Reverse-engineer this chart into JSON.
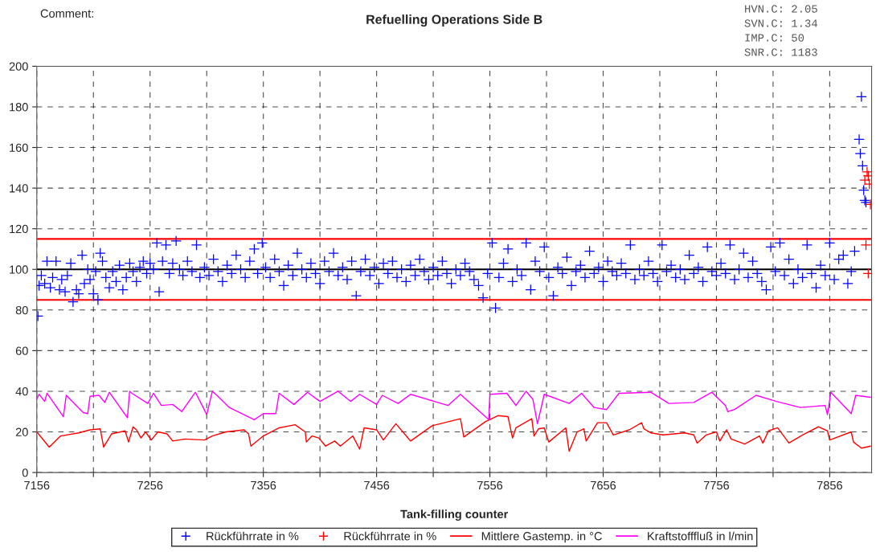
{
  "chart_data": {
    "type": "scatter",
    "title": "Refuelling Operations Side B",
    "xlabel": "Tank-filling counter",
    "annotations": [
      "Comment:",
      "HVN.C: 2.05",
      "SVN.C: 1.34",
      "IMP.C: 50",
      "SNR.C: 1183"
    ],
    "xlim": [
      7156,
      7893
    ],
    "ylim": [
      0,
      200
    ],
    "xticks": [
      7156,
      {
        "value": 7206,
        "label": null
      },
      7256,
      {
        "value": 7306,
        "label": null
      },
      7356,
      {
        "value": 7406,
        "label": null
      },
      7456,
      {
        "value": 7506,
        "label": null
      },
      7556,
      {
        "value": 7606,
        "label": null
      },
      7656,
      {
        "value": 7706,
        "label": null
      },
      7756,
      {
        "value": 7806,
        "label": null
      },
      7856
    ],
    "yticks": [
      0,
      20,
      40,
      60,
      80,
      100,
      120,
      140,
      160,
      180,
      200
    ],
    "grid": true,
    "legend": "bottom",
    "ref_lines": [
      {
        "axis": "y",
        "value": 115,
        "color": "#ff0000"
      },
      {
        "axis": "y",
        "value": 85,
        "color": "#ff0000"
      },
      {
        "axis": "y",
        "value": 100,
        "color": "#000000"
      }
    ],
    "series": [
      {
        "marker": "cross",
        "name": "Rückführrate in %",
        "color": "#0000ff",
        "x": [
          7157,
          7158,
          7160,
          7163,
          7165,
          7168,
          7170,
          7173,
          7176,
          7178,
          7181,
          7183,
          7186,
          7188,
          7191,
          7193,
          7196,
          7198,
          7201,
          7203,
          7206,
          7208,
          7210,
          7212,
          7214,
          7217,
          7220,
          7223,
          7226,
          7229,
          7232,
          7235,
          7238,
          7241,
          7244,
          7247,
          7250,
          7253,
          7256,
          7259,
          7262,
          7264,
          7267,
          7270,
          7273,
          7276,
          7279,
          7282,
          7285,
          7289,
          7293,
          7297,
          7300,
          7304,
          7308,
          7312,
          7316,
          7320,
          7324,
          7328,
          7332,
          7336,
          7340,
          7344,
          7348,
          7351,
          7355,
          7358,
          7362,
          7366,
          7370,
          7374,
          7378,
          7382,
          7386,
          7390,
          7394,
          7398,
          7402,
          7406,
          7410,
          7414,
          7418,
          7422,
          7426,
          7430,
          7434,
          7438,
          7442,
          7446,
          7450,
          7454,
          7458,
          7462,
          7466,
          7470,
          7474,
          7478,
          7482,
          7486,
          7490,
          7494,
          7498,
          7502,
          7506,
          7510,
          7514,
          7518,
          7522,
          7526,
          7530,
          7534,
          7538,
          7542,
          7546,
          7550,
          7554,
          7558,
          7561,
          7564,
          7568,
          7572,
          7576,
          7580,
          7584,
          7588,
          7592,
          7596,
          7600,
          7604,
          7608,
          7612,
          7616,
          7620,
          7624,
          7628,
          7632,
          7636,
          7640,
          7644,
          7648,
          7652,
          7656,
          7660,
          7664,
          7668,
          7672,
          7676,
          7680,
          7684,
          7688,
          7692,
          7696,
          7700,
          7704,
          7708,
          7712,
          7716,
          7720,
          7724,
          7728,
          7732,
          7736,
          7740,
          7744,
          7748,
          7752,
          7756,
          7760,
          7764,
          7768,
          7772,
          7776,
          7780,
          7784,
          7788,
          7792,
          7796,
          7800,
          7804,
          7808,
          7812,
          7816,
          7820,
          7824,
          7828,
          7832,
          7836,
          7840,
          7844,
          7848,
          7852,
          7856,
          7860,
          7864,
          7868,
          7872,
          7875,
          7878,
          7882,
          7883,
          7884,
          7885,
          7886,
          7887,
          7888
        ],
        "values": [
          77,
          92,
          97,
          93,
          104,
          91,
          96,
          104,
          90,
          95,
          89,
          97,
          103,
          84,
          90,
          88,
          107,
          93,
          100,
          95,
          88,
          99,
          85,
          108,
          104,
          96,
          91,
          99,
          94,
          102,
          90,
          96,
          103,
          99,
          94,
          101,
          104,
          98,
          103,
          100,
          113,
          89,
          104,
          112,
          98,
          103,
          114,
          100,
          97,
          104,
          99,
          112,
          96,
          101,
          97,
          105,
          99,
          94,
          102,
          98,
          107,
          100,
          96,
          104,
          110,
          98,
          113,
          101,
          96,
          105,
          99,
          92,
          102,
          97,
          108,
          100,
          96,
          103,
          98,
          93,
          104,
          99,
          108,
          97,
          101,
          95,
          104,
          87,
          99,
          105,
          97,
          101,
          93,
          103,
          98,
          104,
          96,
          100,
          94,
          102,
          97,
          105,
          99,
          95,
          101,
          97,
          104,
          98,
          93,
          100,
          97,
          103,
          99,
          95,
          92,
          86,
          98,
          113,
          81,
          96,
          103,
          110,
          94,
          100,
          97,
          113,
          90,
          104,
          99,
          111,
          96,
          87,
          101,
          98,
          106,
          92,
          99,
          102,
          96,
          109,
          98,
          101,
          94,
          104,
          99,
          97,
          103,
          98,
          112,
          95,
          100,
          97,
          104,
          98,
          94,
          112,
          99,
          102,
          96,
          100,
          95,
          107,
          98,
          101,
          94,
          111,
          99,
          97,
          103,
          98,
          112,
          95,
          100,
          108,
          96,
          104,
          98,
          94,
          90,
          111,
          99,
          113,
          97,
          105,
          93,
          100,
          96,
          112,
          98,
          91,
          102,
          97,
          113,
          95,
          105,
          107,
          93,
          99,
          109,
          164,
          157,
          185,
          151,
          139,
          134,
          133
        ]
      },
      {
        "marker": "cross",
        "name": "Rückführrate in %",
        "color": "#ff0000",
        "x": [
          7887,
          7888,
          7889,
          7890,
          7890,
          7891,
          7892
        ],
        "values": [
          144,
          112,
          148,
          146,
          98,
          142,
          132
        ]
      },
      {
        "type": "line",
        "marker": "none",
        "name": "Mittlere Gastemp. in °C",
        "color": "#ff0000",
        "x": [
          7156,
          7167,
          7177,
          7193,
          7203,
          7212,
          7215,
          7222,
          7234,
          7237,
          7241,
          7244,
          7248,
          7252,
          7257,
          7263,
          7271,
          7276,
          7287,
          7304,
          7311,
          7323,
          7339,
          7343,
          7345,
          7356,
          7370,
          7384,
          7393,
          7394,
          7399,
          7405,
          7411,
          7419,
          7424,
          7435,
          7441,
          7445,
          7456,
          7462,
          7473,
          7486,
          7505,
          7530,
          7533,
          7552,
          7563,
          7572,
          7576,
          7579,
          7593,
          7595,
          7599,
          7604,
          7608,
          7623,
          7626,
          7633,
          7639,
          7641,
          7651,
          7659,
          7665,
          7679,
          7690,
          7692,
          7698,
          7709,
          7728,
          7736,
          7739,
          7747,
          7756,
          7759,
          7765,
          7769,
          7781,
          7794,
          7797,
          7802,
          7810,
          7820,
          7832,
          7846,
          7854,
          7856,
          7875,
          7877,
          7884,
          7892
        ],
        "values": [
          20,
          12.5,
          18,
          19.5,
          21,
          21.5,
          12.5,
          19,
          20.5,
          15,
          22.5,
          21,
          17,
          20,
          16,
          20,
          19,
          15.5,
          16.5,
          16,
          18,
          20,
          21,
          19,
          13,
          18,
          22,
          23.5,
          20,
          15,
          18,
          17,
          13,
          15.5,
          13,
          18,
          11.5,
          22,
          21,
          16,
          24,
          15.5,
          23,
          26.5,
          17.5,
          25,
          28,
          27.5,
          17,
          22,
          26.5,
          18,
          21.5,
          22,
          15,
          22,
          10.5,
          20,
          21.5,
          15.5,
          24.5,
          24.5,
          18.5,
          21,
          24.5,
          21.5,
          19.5,
          18.5,
          19.5,
          18.5,
          14.5,
          18.5,
          20,
          15.5,
          21,
          16.5,
          14,
          18,
          14.5,
          20.5,
          22,
          14.5,
          18.5,
          22.5,
          20.5,
          16,
          20,
          15,
          12,
          13
        ]
      },
      {
        "type": "line",
        "marker": "none",
        "name": "Kraftstofffluß in l/min",
        "color": "#ff00ff",
        "x": [
          7156,
          7158,
          7163,
          7165,
          7179.5,
          7182,
          7197,
          7201,
          7203,
          7211,
          7216,
          7220,
          7236,
          7238,
          7240,
          7254,
          7259,
          7266,
          7276,
          7284,
          7296,
          7302,
          7306,
          7311,
          7315,
          7326,
          7348,
          7356,
          7367,
          7370,
          7383,
          7395,
          7406,
          7422,
          7433,
          7441,
          7456,
          7461,
          7475,
          7486,
          7519,
          7530,
          7555,
          7556,
          7571,
          7579,
          7588,
          7594,
          7598,
          7604,
          7626,
          7637,
          7648,
          7659,
          7670,
          7698,
          7714,
          7736,
          7752,
          7764,
          7766,
          7772,
          7791,
          7809,
          7830,
          7852,
          7854,
          7857,
          7875,
          7879,
          7892
        ],
        "values": [
          36,
          38.5,
          35,
          39,
          27.5,
          38,
          29.5,
          29,
          37.5,
          38,
          34.5,
          39.5,
          27,
          40,
          39,
          34,
          39,
          33,
          33.5,
          30,
          39.5,
          33,
          28.5,
          40,
          38,
          32,
          26,
          29,
          29,
          39,
          33.5,
          39.5,
          35,
          40,
          35,
          38.5,
          33.5,
          38,
          34,
          38.5,
          33,
          38.5,
          26,
          38.5,
          39,
          33,
          40,
          36,
          24,
          38.5,
          34,
          39,
          32,
          31,
          39,
          39.5,
          34,
          34.5,
          39.5,
          33,
          30,
          31,
          38,
          35,
          32,
          33,
          28.5,
          39.5,
          29,
          38,
          37
        ]
      }
    ]
  }
}
